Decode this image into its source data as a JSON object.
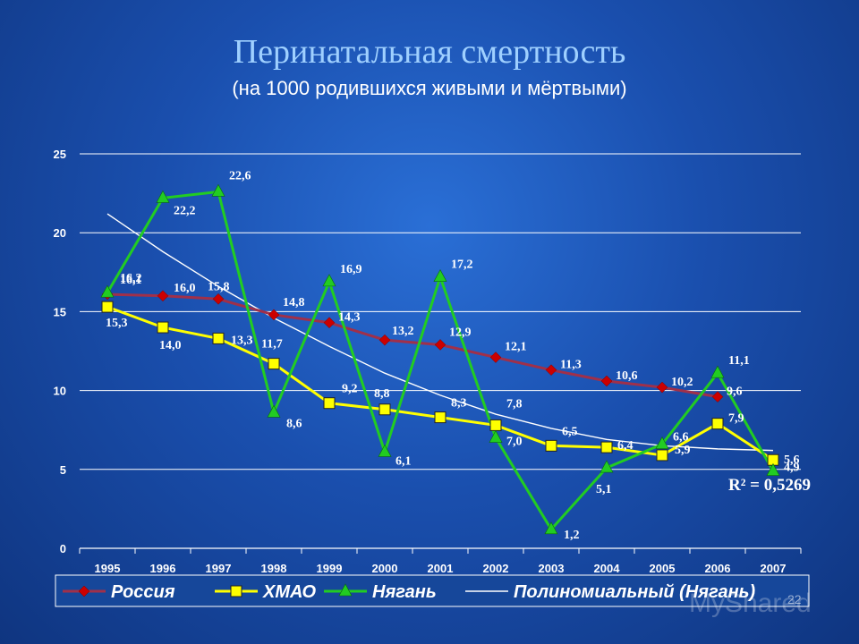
{
  "page": {
    "title": "Перинатальная смертность",
    "subtitle": "(на 1000 родившихся живыми и мёртвыми)",
    "watermark": "MyShared",
    "page_number": "22"
  },
  "chart_data": {
    "type": "line",
    "categories": [
      "1995",
      "1996",
      "1997",
      "1998",
      "1999",
      "2000",
      "2001",
      "2002",
      "2003",
      "2004",
      "2005",
      "2006",
      "2007"
    ],
    "ylim": [
      0,
      25
    ],
    "yticks": [
      0,
      5,
      10,
      15,
      20,
      25
    ],
    "grid": true,
    "legend_position": "bottom",
    "series": [
      {
        "name": "Россия",
        "color": "#cc0000",
        "line_color": "#a0304a",
        "marker": "diamond",
        "values": [
          16.1,
          16.0,
          15.8,
          14.8,
          14.3,
          13.2,
          12.9,
          12.1,
          11.3,
          10.6,
          10.2,
          9.6,
          null
        ],
        "labels": [
          "16,1",
          "16,0",
          "15,8",
          "14,8",
          "14,3",
          "13,2",
          "12,9",
          "12,1",
          "11,3",
          "10,6",
          "10,2",
          "9,6",
          ""
        ]
      },
      {
        "name": "ХМАО",
        "color": "#ffff00",
        "line_color": "#ffff00",
        "marker": "square",
        "values": [
          15.3,
          14.0,
          13.3,
          11.7,
          9.2,
          8.8,
          8.3,
          7.8,
          6.5,
          6.4,
          5.9,
          7.9,
          5.6
        ],
        "labels": [
          "15,3",
          "14,0",
          "13,3",
          "11,7",
          "9,2",
          "8,8",
          "8,3",
          "7,8",
          "6,5",
          "6,4",
          "5,9",
          "7,9",
          "5,6"
        ]
      },
      {
        "name": "Нягань",
        "color": "#22cc22",
        "line_color": "#22cc22",
        "marker": "triangle",
        "values": [
          16.2,
          22.2,
          22.6,
          8.6,
          16.9,
          6.1,
          17.2,
          7.0,
          1.2,
          5.1,
          6.6,
          11.1,
          4.9
        ],
        "labels": [
          "16,2",
          "22,2",
          "22,6",
          "8,6",
          "16,9",
          "6,1",
          "17,2",
          "7,0",
          "1,2",
          "5,1",
          "6,6",
          "11,1",
          "4,9"
        ]
      },
      {
        "name": "Полиномиальный (Нягань)",
        "color": "#ffffff",
        "line_color": "#ffffff",
        "marker": "none",
        "values": [
          21.2,
          18.8,
          16.6,
          14.6,
          12.8,
          11.1,
          9.7,
          8.5,
          7.6,
          6.9,
          6.5,
          6.3,
          6.2
        ],
        "labels": []
      }
    ],
    "annotation": {
      "text": "R² = 0,5269"
    }
  }
}
